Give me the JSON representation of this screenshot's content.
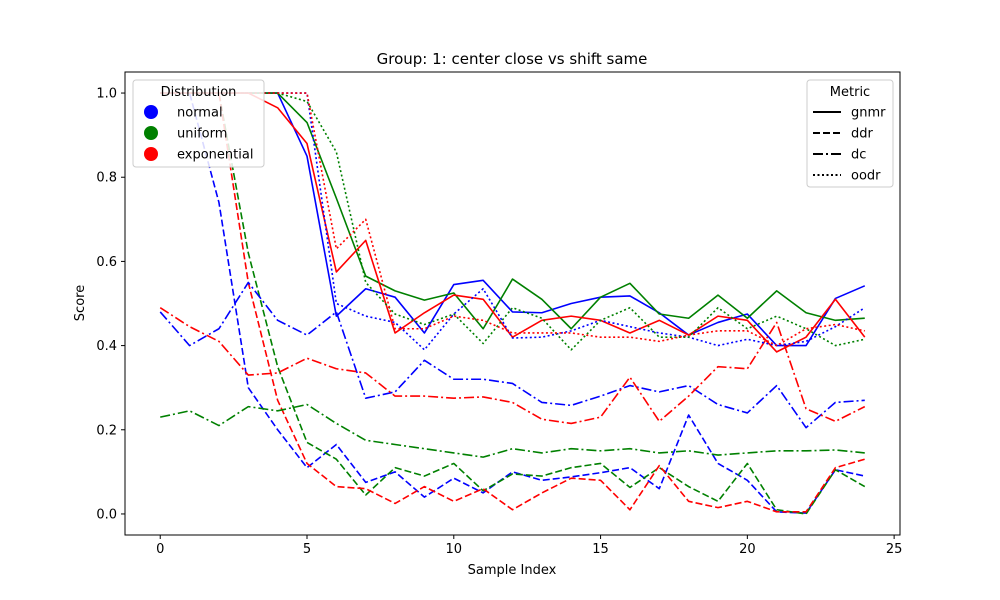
{
  "chart_data": {
    "type": "line",
    "title": "Group: 1: center close vs shift same",
    "xlabel": "Sample Index",
    "ylabel": "Score",
    "xlim": [
      -1.2,
      25.2
    ],
    "ylim": [
      -0.05,
      1.05
    ],
    "xticks": [
      0,
      5,
      10,
      15,
      20,
      25
    ],
    "yticks": [
      0.0,
      0.2,
      0.4,
      0.6,
      0.8,
      1.0
    ],
    "grid": false,
    "x": [
      0,
      1,
      2,
      3,
      4,
      5,
      6,
      7,
      8,
      9,
      10,
      11,
      12,
      13,
      14,
      15,
      16,
      17,
      18,
      19,
      20,
      21,
      22,
      23,
      24
    ],
    "legend_distribution": {
      "title": "Distribution",
      "placement": "top-left",
      "entries": [
        {
          "label": "normal",
          "color": "#0000ff"
        },
        {
          "label": "uniform",
          "color": "#008000"
        },
        {
          "label": "exponential",
          "color": "#ff0000"
        }
      ]
    },
    "legend_metric": {
      "title": "Metric",
      "placement": "top-right",
      "entries": [
        {
          "label": "gnmr",
          "style": "solid"
        },
        {
          "label": "ddr",
          "style": "dashed"
        },
        {
          "label": "dc",
          "style": "dashdot"
        },
        {
          "label": "oodr",
          "style": "dotted"
        }
      ]
    },
    "series": [
      {
        "distribution": "normal",
        "metric": "gnmr",
        "color": "#0000ff",
        "style": "solid",
        "values": [
          1.0,
          1.0,
          1.0,
          1.0,
          1.0,
          0.85,
          0.47,
          0.535,
          0.515,
          0.43,
          0.545,
          0.555,
          0.48,
          0.478,
          0.5,
          0.515,
          0.518,
          0.478,
          0.425,
          0.455,
          0.475,
          0.4,
          0.4,
          0.512,
          0.542
        ]
      },
      {
        "distribution": "uniform",
        "metric": "gnmr",
        "color": "#008000",
        "style": "solid",
        "values": [
          1.0,
          1.0,
          1.0,
          1.0,
          1.0,
          0.93,
          0.75,
          0.565,
          0.53,
          0.508,
          0.525,
          0.44,
          0.558,
          0.51,
          0.44,
          0.515,
          0.548,
          0.475,
          0.465,
          0.52,
          0.465,
          0.53,
          0.478,
          0.46,
          0.465
        ]
      },
      {
        "distribution": "exponential",
        "metric": "gnmr",
        "color": "#ff0000",
        "style": "solid",
        "values": [
          1.0,
          1.0,
          1.0,
          1.0,
          0.965,
          0.88,
          0.575,
          0.65,
          0.43,
          0.478,
          0.52,
          0.51,
          0.42,
          0.46,
          0.47,
          0.46,
          0.43,
          0.46,
          0.425,
          0.47,
          0.46,
          0.385,
          0.42,
          0.51,
          0.42
        ]
      },
      {
        "distribution": "normal",
        "metric": "ddr",
        "color": "#0000ff",
        "style": "dashed",
        "values": [
          1.0,
          1.0,
          0.74,
          0.3,
          0.2,
          0.11,
          0.165,
          0.075,
          0.1,
          0.04,
          0.085,
          0.05,
          0.1,
          0.08,
          0.088,
          0.098,
          0.11,
          0.06,
          0.235,
          0.12,
          0.08,
          0.005,
          0.002,
          0.105,
          0.09
        ]
      },
      {
        "distribution": "uniform",
        "metric": "ddr",
        "color": "#008000",
        "style": "dashed",
        "values": [
          1.0,
          1.0,
          1.0,
          0.62,
          0.35,
          0.17,
          0.13,
          0.045,
          0.11,
          0.09,
          0.12,
          0.055,
          0.095,
          0.09,
          0.11,
          0.12,
          0.063,
          0.11,
          0.065,
          0.03,
          0.12,
          0.01,
          0.0,
          0.105,
          0.065
        ]
      },
      {
        "distribution": "exponential",
        "metric": "ddr",
        "color": "#ff0000",
        "style": "dashed",
        "values": [
          1.0,
          1.0,
          1.0,
          0.55,
          0.27,
          0.12,
          0.065,
          0.06,
          0.025,
          0.065,
          0.03,
          0.06,
          0.01,
          0.05,
          0.085,
          0.08,
          0.01,
          0.115,
          0.03,
          0.015,
          0.03,
          0.005,
          0.005,
          0.11,
          0.13
        ]
      },
      {
        "distribution": "normal",
        "metric": "dc",
        "color": "#0000ff",
        "style": "dashdot",
        "values": [
          0.48,
          0.4,
          0.44,
          0.55,
          0.46,
          0.425,
          0.48,
          0.275,
          0.29,
          0.365,
          0.32,
          0.32,
          0.31,
          0.265,
          0.258,
          0.28,
          0.305,
          0.29,
          0.305,
          0.26,
          0.24,
          0.305,
          0.205,
          0.265,
          0.27
        ]
      },
      {
        "distribution": "uniform",
        "metric": "dc",
        "color": "#008000",
        "style": "dashdot",
        "values": [
          0.23,
          0.245,
          0.21,
          0.255,
          0.245,
          0.26,
          0.215,
          0.175,
          0.165,
          0.155,
          0.145,
          0.135,
          0.155,
          0.145,
          0.155,
          0.15,
          0.155,
          0.145,
          0.15,
          0.14,
          0.145,
          0.15,
          0.15,
          0.152,
          0.145
        ]
      },
      {
        "distribution": "exponential",
        "metric": "dc",
        "color": "#ff0000",
        "style": "dashdot",
        "values": [
          0.49,
          0.445,
          0.41,
          0.33,
          0.335,
          0.37,
          0.345,
          0.335,
          0.28,
          0.28,
          0.275,
          0.278,
          0.265,
          0.225,
          0.215,
          0.23,
          0.325,
          0.22,
          0.28,
          0.35,
          0.345,
          0.455,
          0.25,
          0.22,
          0.255
        ]
      },
      {
        "distribution": "normal",
        "metric": "oodr",
        "color": "#0000ff",
        "style": "dotted",
        "values": [
          1.0,
          1.0,
          1.0,
          1.0,
          1.0,
          1.0,
          0.5,
          0.47,
          0.455,
          0.39,
          0.475,
          0.535,
          0.418,
          0.42,
          0.435,
          0.46,
          0.445,
          0.43,
          0.42,
          0.4,
          0.415,
          0.4,
          0.41,
          0.445,
          0.49
        ]
      },
      {
        "distribution": "uniform",
        "metric": "oodr",
        "color": "#008000",
        "style": "dotted",
        "values": [
          1.0,
          1.0,
          1.0,
          1.0,
          1.0,
          0.98,
          0.86,
          0.55,
          0.475,
          0.45,
          0.475,
          0.405,
          0.49,
          0.465,
          0.39,
          0.46,
          0.49,
          0.42,
          0.42,
          0.49,
          0.44,
          0.47,
          0.44,
          0.4,
          0.415
        ]
      },
      {
        "distribution": "exponential",
        "metric": "oodr",
        "color": "#ff0000",
        "style": "dotted",
        "values": [
          1.0,
          1.0,
          1.0,
          1.0,
          1.0,
          1.0,
          0.63,
          0.7,
          0.44,
          0.44,
          0.47,
          0.46,
          0.43,
          0.43,
          0.43,
          0.42,
          0.42,
          0.41,
          0.425,
          0.435,
          0.435,
          0.4,
          0.44,
          0.45,
          0.435
        ]
      }
    ]
  }
}
